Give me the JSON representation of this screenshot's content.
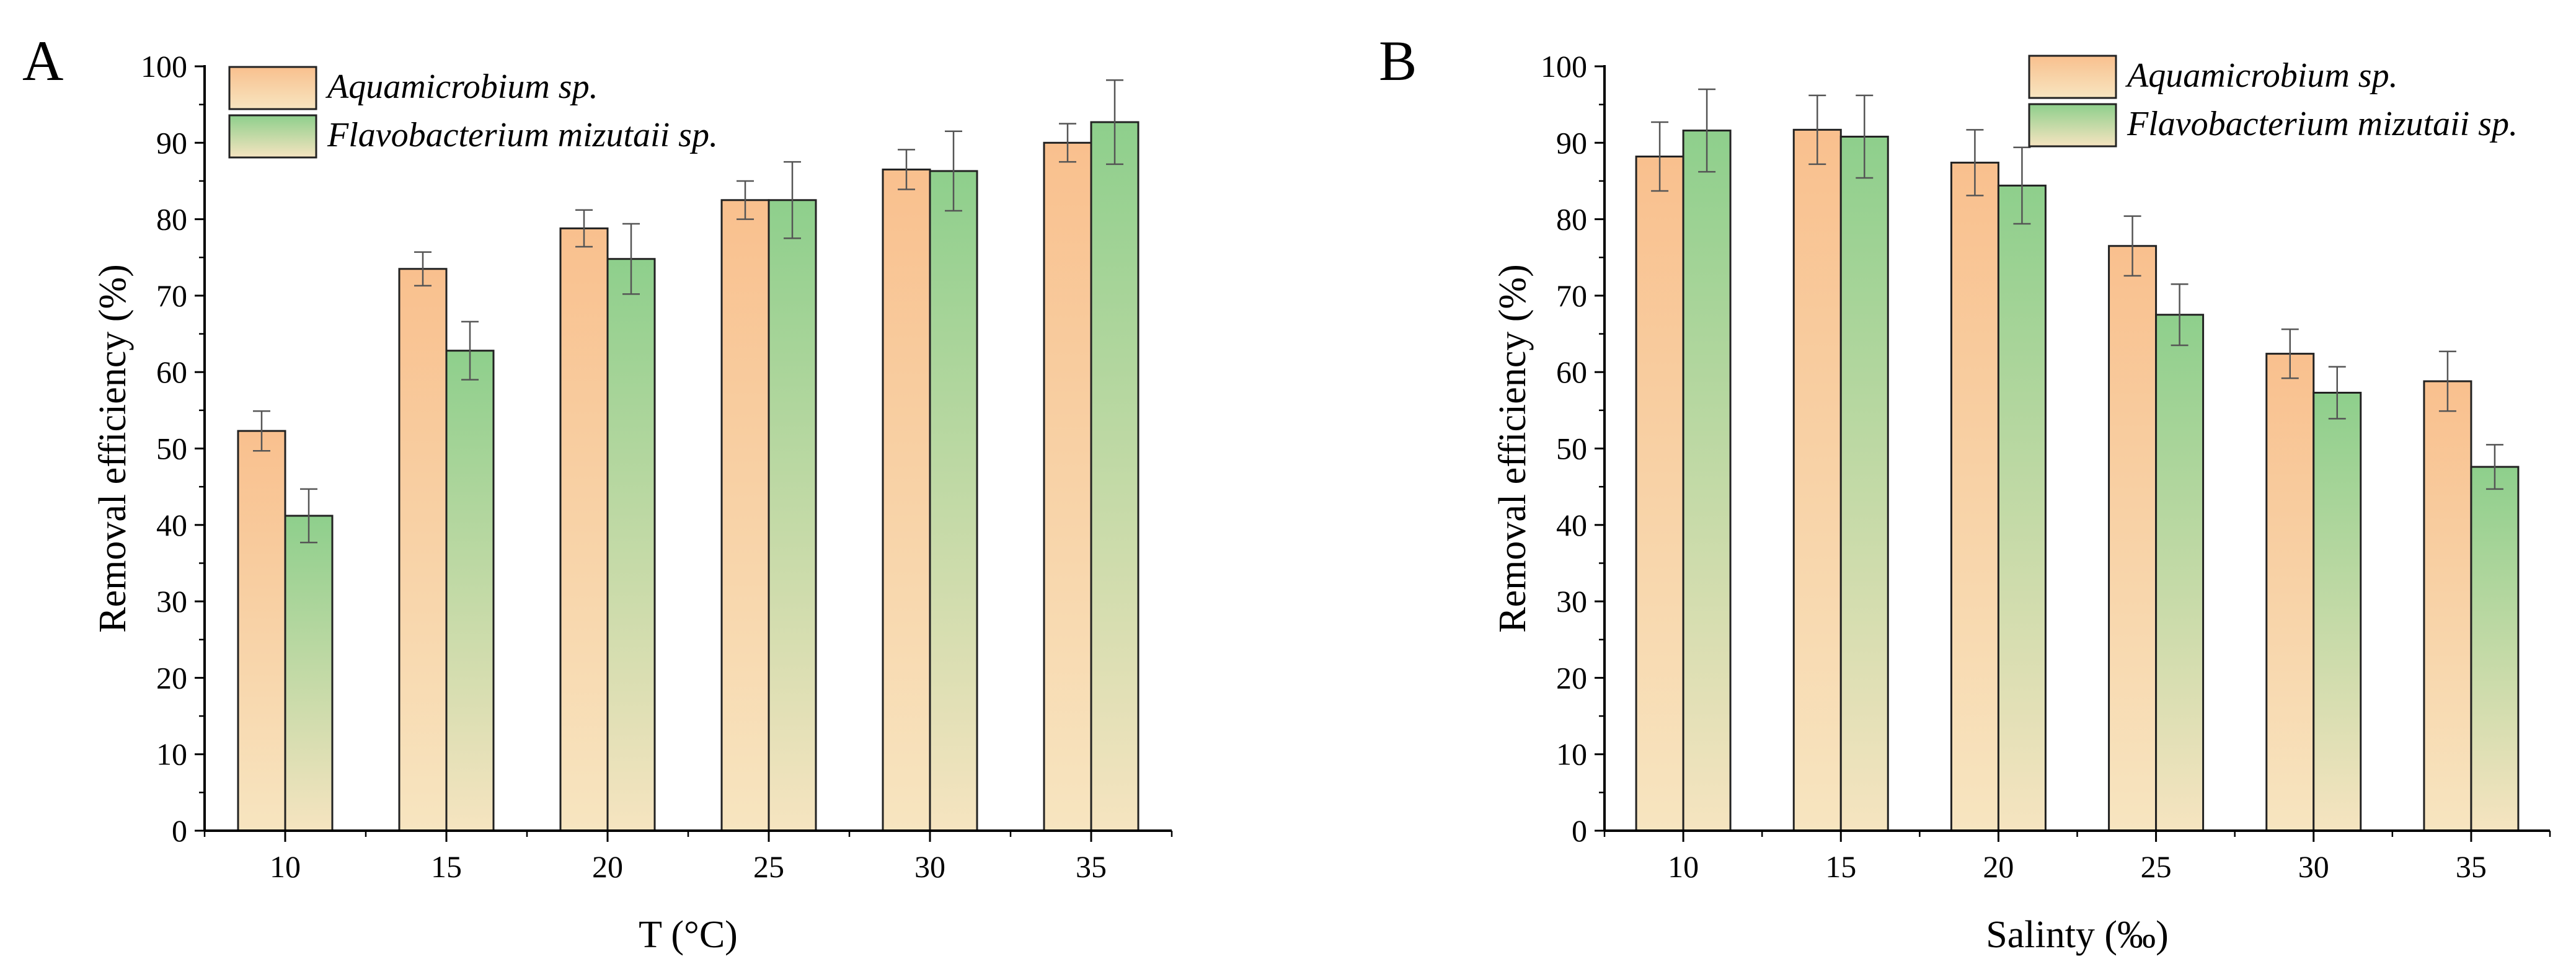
{
  "colors": {
    "series1_top": "#F9C08E",
    "series1_bottom": "#F7E5C0",
    "series2_top": "#8ECF8C",
    "series2_bottom": "#F6E4C0",
    "axis": "#000000",
    "error_bar": "#555555"
  },
  "chart_data": [
    {
      "panel_label": "A",
      "type": "bar",
      "xlabel": "T (°C)",
      "ylabel": "Removal efficiency (%)",
      "ylim": [
        0,
        100
      ],
      "yticks": [
        0,
        10,
        20,
        30,
        40,
        50,
        60,
        70,
        80,
        90,
        100
      ],
      "categories": [
        "10",
        "15",
        "20",
        "25",
        "30",
        "35"
      ],
      "legend_position": "top-left",
      "series": [
        {
          "name": "Aquamicrobium sp.",
          "values": [
            52.3,
            73.5,
            78.8,
            82.5,
            86.5,
            90.0
          ],
          "errors": [
            2.6,
            2.2,
            2.4,
            2.5,
            2.6,
            2.5
          ]
        },
        {
          "name": "Flavobacterium mizutaii sp.",
          "values": [
            41.2,
            62.8,
            74.8,
            82.5,
            86.3,
            92.7
          ],
          "errors": [
            3.5,
            3.8,
            4.6,
            5.0,
            5.2,
            5.5
          ]
        }
      ]
    },
    {
      "panel_label": "B",
      "type": "bar",
      "xlabel": "Salinty (‰)",
      "ylabel": "Removal efficiency (%)",
      "ylim": [
        0,
        100
      ],
      "yticks": [
        0,
        10,
        20,
        30,
        40,
        50,
        60,
        70,
        80,
        90,
        100
      ],
      "categories": [
        "10",
        "15",
        "20",
        "25",
        "30",
        "35"
      ],
      "legend_position": "top-right",
      "series": [
        {
          "name": "Aquamicrobium sp.",
          "values": [
            88.2,
            91.7,
            87.4,
            76.5,
            62.4,
            58.8
          ],
          "errors": [
            4.5,
            4.5,
            4.3,
            3.9,
            3.2,
            3.9
          ]
        },
        {
          "name": "Flavobacterium mizutaii sp.",
          "values": [
            91.6,
            90.8,
            84.4,
            67.5,
            57.3,
            47.6
          ],
          "errors": [
            5.4,
            5.4,
            5.0,
            4.0,
            3.4,
            2.9
          ]
        }
      ]
    }
  ]
}
